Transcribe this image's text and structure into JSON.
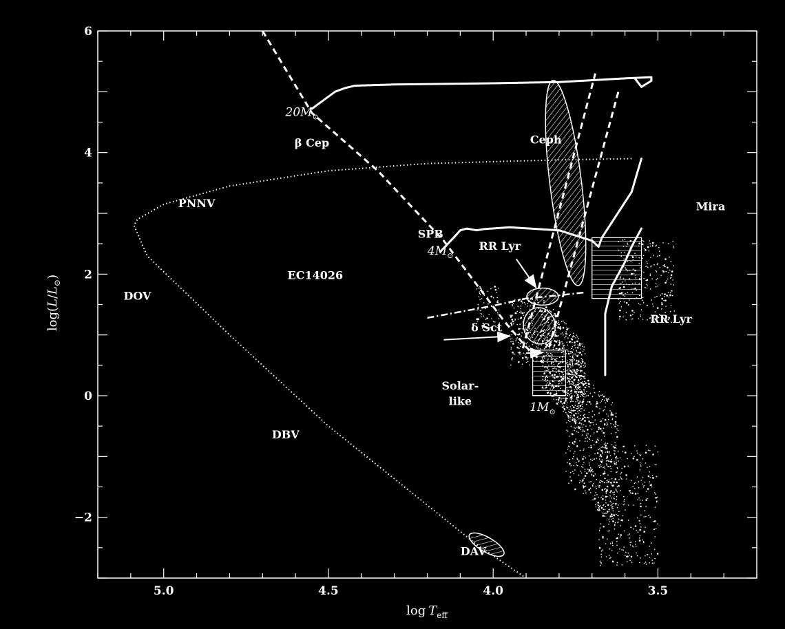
{
  "chart_data": {
    "type": "scatter",
    "title": "",
    "xlabel_prefix": "log",
    "xlabel_var": "T",
    "xlabel_sub": "eff",
    "ylabel_prefix": "log(",
    "ylabel_var": "L",
    "ylabel_mid": "/",
    "ylabel_var2": "L",
    "ylabel_sub": "⊙",
    "ylabel_suffix": ")",
    "xlim": [
      5.2,
      3.2
    ],
    "ylim": [
      -3,
      6
    ],
    "x_ticks": [
      {
        "value": 5.0,
        "label": "5.0"
      },
      {
        "value": 4.5,
        "label": "4.5"
      },
      {
        "value": 4.0,
        "label": "4.0"
      },
      {
        "value": 3.5,
        "label": "3.5"
      }
    ],
    "y_ticks": [
      {
        "value": -2,
        "label": "−2"
      },
      {
        "value": 0,
        "label": "0"
      },
      {
        "value": 2,
        "label": "2"
      },
      {
        "value": 4,
        "label": "4"
      },
      {
        "value": 6,
        "label": "6"
      }
    ],
    "labels": [
      {
        "id": "20msun",
        "text": "20M",
        "sub": "⊙",
        "x": 4.58,
        "y": 4.6,
        "italic": true
      },
      {
        "id": "beta-cep",
        "text": "β Cep",
        "x": 4.55,
        "y": 4.1,
        "italic": false
      },
      {
        "id": "ceph",
        "text": "Ceph",
        "x": 3.84,
        "y": 4.15
      },
      {
        "id": "pnnv",
        "text": "PNNV",
        "x": 4.9,
        "y": 3.1
      },
      {
        "id": "mira",
        "text": "Mira",
        "x": 3.34,
        "y": 3.05
      },
      {
        "id": "spb",
        "text": "SPB",
        "x": 4.19,
        "y": 2.6
      },
      {
        "id": "4msun",
        "text": "4M",
        "sub": "⊙",
        "x": 4.16,
        "y": 2.32,
        "italic": true
      },
      {
        "id": "rr-lyr-top",
        "text": "RR Lyr",
        "x": 3.98,
        "y": 2.4
      },
      {
        "id": "ec14026",
        "text": "EC14026",
        "x": 4.54,
        "y": 1.92
      },
      {
        "id": "dov",
        "text": "DOV",
        "x": 5.08,
        "y": 1.58
      },
      {
        "id": "rr-lyr-right",
        "text": "RR Lyr",
        "x": 3.46,
        "y": 1.2
      },
      {
        "id": "delta-sct",
        "text": "δ Sct",
        "x": 4.02,
        "y": 1.06
      },
      {
        "id": "solar",
        "text": "Solar-",
        "x": 4.1,
        "y": 0.1
      },
      {
        "id": "like",
        "text": "like",
        "x": 4.1,
        "y": -0.15
      },
      {
        "id": "1msun",
        "text": "1M",
        "sub": "⊙",
        "x": 3.85,
        "y": -0.25,
        "italic": true
      },
      {
        "id": "dbv",
        "text": "DBV",
        "x": 4.63,
        "y": -0.7
      },
      {
        "id": "dav",
        "text": "DAV",
        "x": 4.06,
        "y": -2.62
      }
    ],
    "tracks": {
      "zams": [
        [
          4.7,
          6.0
        ],
        [
          4.55,
          4.65
        ],
        [
          4.35,
          3.7
        ],
        [
          4.15,
          2.55
        ],
        [
          3.97,
          1.25
        ],
        [
          3.9,
          0.8
        ],
        [
          3.85,
          0.55
        ]
      ],
      "track_20": [
        [
          4.55,
          4.72
        ],
        [
          4.48,
          5.0
        ],
        [
          4.45,
          5.06
        ],
        [
          4.42,
          5.1
        ],
        [
          4.3,
          5.12
        ],
        [
          4.0,
          5.14
        ],
        [
          3.8,
          5.16
        ],
        [
          3.6,
          5.22
        ],
        [
          3.52,
          5.24
        ],
        [
          3.52,
          5.18
        ],
        [
          3.55,
          5.08
        ],
        [
          3.57,
          5.22
        ]
      ],
      "track_4": [
        [
          4.16,
          2.37
        ],
        [
          4.12,
          2.6
        ],
        [
          4.1,
          2.72
        ],
        [
          4.08,
          2.75
        ],
        [
          4.05,
          2.72
        ],
        [
          4.03,
          2.74
        ],
        [
          3.95,
          2.77
        ],
        [
          3.8,
          2.72
        ],
        [
          3.7,
          2.55
        ],
        [
          3.68,
          2.45
        ],
        [
          3.67,
          2.6
        ],
        [
          3.61,
          3.1
        ],
        [
          3.58,
          3.35
        ],
        [
          3.55,
          3.9
        ]
      ],
      "track_1": [
        [
          3.66,
          0.34
        ],
        [
          3.66,
          1.35
        ],
        [
          3.64,
          1.8
        ],
        [
          3.6,
          2.2
        ],
        [
          3.58,
          2.45
        ],
        [
          3.55,
          2.75
        ]
      ],
      "horizontal_branch": [
        [
          4.2,
          1.28
        ],
        [
          4.1,
          1.38
        ],
        [
          4.0,
          1.48
        ],
        [
          3.9,
          1.6
        ],
        [
          3.8,
          1.65
        ],
        [
          3.72,
          1.7
        ]
      ],
      "pnnv_loop": [
        [
          3.58,
          3.9
        ],
        [
          3.8,
          3.88
        ],
        [
          4.2,
          3.82
        ],
        [
          4.5,
          3.7
        ],
        [
          4.8,
          3.45
        ],
        [
          5.0,
          3.15
        ],
        [
          5.08,
          2.9
        ],
        [
          5.09,
          2.8
        ],
        [
          5.05,
          2.3
        ],
        [
          4.8,
          1.0
        ],
        [
          4.5,
          -0.5
        ],
        [
          4.2,
          -1.8
        ],
        [
          4.05,
          -2.45
        ],
        [
          3.9,
          -3.0
        ]
      ],
      "ceph_strip_blue": [
        [
          3.91,
          0.78
        ],
        [
          3.69,
          5.3
        ]
      ],
      "ceph_strip_red": [
        [
          3.83,
          0.8
        ],
        [
          3.62,
          5.0
        ]
      ]
    },
    "regions": {
      "ceph": {
        "cx": 3.78,
        "cy": 3.5,
        "rx": 0.048,
        "ry": 1.7,
        "rot": -7
      },
      "rr_lyr": {
        "cx": 3.85,
        "cy": 1.63,
        "rx": 0.048,
        "ry": 0.14,
        "rot": 0
      },
      "delta_sct": {
        "cx": 3.86,
        "cy": 1.15,
        "rx": 0.048,
        "ry": 0.3,
        "rot": -10
      },
      "dav": {
        "cx": 4.02,
        "cy": -2.45,
        "rx": 0.06,
        "ry": 0.12,
        "rot": 30
      },
      "mira": {
        "x1": 3.7,
        "x2": 3.55,
        "y1": 1.6,
        "y2": 2.6
      },
      "solar": {
        "x1": 3.88,
        "x2": 3.78,
        "y1": 0.0,
        "y2": 0.75
      }
    },
    "arrows": [
      {
        "from": [
          3.93,
          2.25
        ],
        "to": [
          3.87,
          1.78
        ]
      },
      {
        "from": [
          4.15,
          0.92
        ],
        "to": [
          3.95,
          0.98
        ]
      },
      {
        "from": [
          3.9,
          0.7
        ],
        "to": [
          3.85,
          0.71
        ]
      }
    ]
  }
}
